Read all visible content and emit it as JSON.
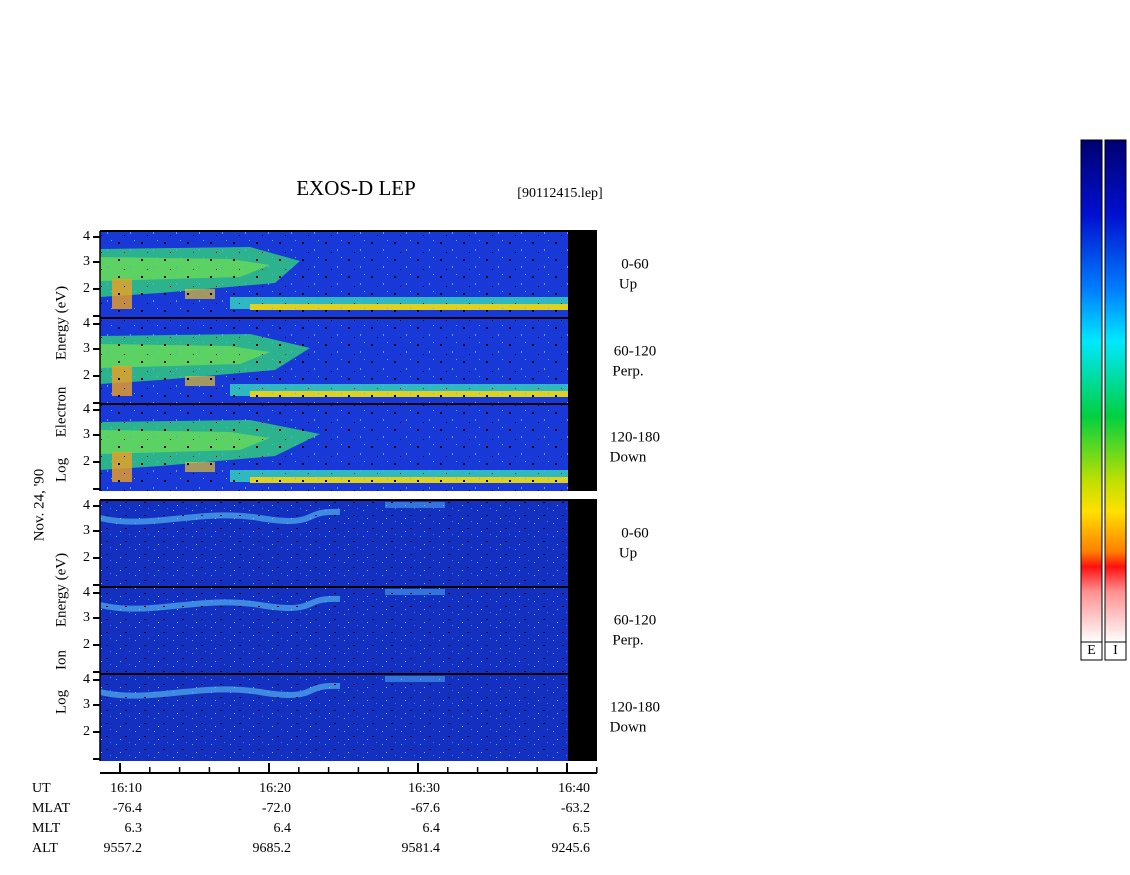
{
  "header": {
    "title": "EXOS-D LEP",
    "file": "[90112415.lep]"
  },
  "date": "Nov. 24, '90",
  "electron": {
    "axis_label": [
      "Log",
      "Electron",
      "Energy (eV)"
    ],
    "panels": [
      {
        "ticks": [
          "4",
          "3",
          "2"
        ],
        "angle": "0-60",
        "direction": "Up"
      },
      {
        "ticks": [
          "4",
          "3",
          "2"
        ],
        "angle": "60-120",
        "direction": "Perp."
      },
      {
        "ticks": [
          "4",
          "3",
          "2"
        ],
        "angle": "120-180",
        "direction": "Down"
      }
    ]
  },
  "ion": {
    "axis_label": [
      "Log",
      "Ion",
      "Energy (eV)"
    ],
    "panels": [
      {
        "ticks": [
          "4",
          "3",
          "2"
        ],
        "angle": "0-60",
        "direction": "Up"
      },
      {
        "ticks": [
          "4",
          "3",
          "2"
        ],
        "angle": "60-120",
        "direction": "Perp."
      },
      {
        "ticks": [
          "4",
          "3",
          "2"
        ],
        "angle": "120-180",
        "direction": "Down"
      }
    ]
  },
  "time_axis": {
    "rows": [
      {
        "name": "UT",
        "values": [
          "16:10",
          "16:20",
          "16:30",
          "16:40"
        ]
      },
      {
        "name": "MLAT",
        "values": [
          "-76.4",
          "-72.0",
          "-67.6",
          "-63.2"
        ]
      },
      {
        "name": "MLT",
        "values": [
          "6.3",
          "6.4",
          "6.4",
          "6.5"
        ]
      },
      {
        "name": "ALT",
        "values": [
          "9557.2",
          "9685.2",
          "9581.4",
          "9245.6"
        ]
      }
    ]
  },
  "color_bars": [
    "E",
    "I"
  ]
}
